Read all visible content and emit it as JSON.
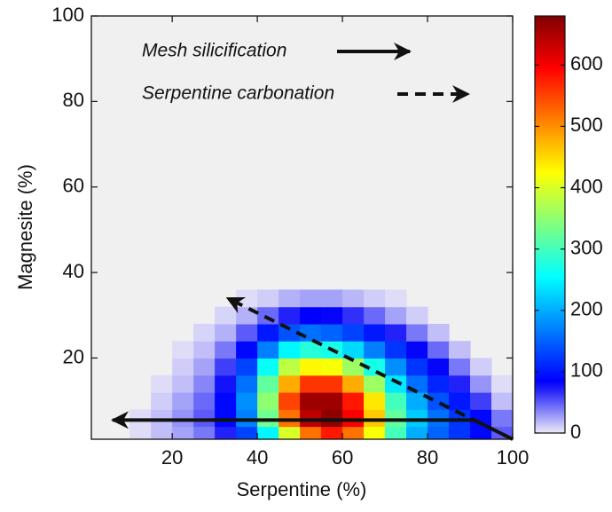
{
  "chart_data": {
    "type": "heatmap",
    "xlabel": "Serpentine (%)",
    "ylabel": "Magnesite (%)",
    "xlim": [
      1,
      100
    ],
    "ylim": [
      1,
      100
    ],
    "xticks": [
      20,
      40,
      60,
      80,
      100
    ],
    "yticks": [
      20,
      40,
      60,
      80,
      100
    ],
    "x": [
      2.5,
      7.5,
      12.5,
      17.5,
      22.5,
      27.5,
      32.5,
      37.5,
      42.5,
      47.5,
      52.5,
      57.5,
      62.5,
      67.5,
      72.5,
      77.5,
      82.5,
      87.5,
      92.5,
      97.5
    ],
    "y": [
      2,
      6,
      10,
      14,
      18,
      22,
      26,
      30,
      34
    ],
    "z": [
      [
        0,
        0,
        5,
        15,
        25,
        40,
        70,
        130,
        250,
        400,
        520,
        580,
        520,
        420,
        300,
        200,
        150,
        120,
        90,
        50
      ],
      [
        0,
        0,
        5,
        15,
        30,
        50,
        90,
        170,
        330,
        520,
        640,
        670,
        600,
        460,
        320,
        220,
        160,
        120,
        90,
        40
      ],
      [
        0,
        0,
        0,
        10,
        25,
        45,
        90,
        180,
        350,
        550,
        660,
        660,
        580,
        440,
        300,
        200,
        140,
        100,
        60,
        15
      ],
      [
        0,
        0,
        0,
        5,
        15,
        35,
        75,
        160,
        320,
        480,
        560,
        560,
        480,
        360,
        240,
        160,
        110,
        70,
        30,
        5
      ],
      [
        0,
        0,
        0,
        0,
        10,
        25,
        60,
        130,
        260,
        380,
        430,
        420,
        360,
        270,
        180,
        120,
        80,
        40,
        10,
        0
      ],
      [
        0,
        0,
        0,
        0,
        5,
        15,
        40,
        90,
        170,
        250,
        280,
        270,
        230,
        170,
        120,
        80,
        45,
        15,
        0,
        0
      ],
      [
        0,
        0,
        0,
        0,
        0,
        8,
        20,
        50,
        100,
        140,
        160,
        150,
        130,
        100,
        70,
        40,
        15,
        0,
        0,
        0
      ],
      [
        0,
        0,
        0,
        0,
        0,
        0,
        8,
        20,
        45,
        70,
        85,
        80,
        65,
        45,
        25,
        10,
        0,
        0,
        0,
        0
      ],
      [
        0,
        0,
        0,
        0,
        0,
        0,
        0,
        5,
        10,
        20,
        25,
        25,
        18,
        10,
        5,
        0,
        0,
        0,
        0,
        0
      ]
    ],
    "clim": [
      0,
      680
    ],
    "cticks": [
      0,
      100,
      200,
      300,
      400,
      500,
      600
    ],
    "annotations": [
      {
        "text": "Mesh silicification",
        "style": "solid",
        "points": [
          [
            100,
            1
          ],
          [
            91,
            5.5
          ],
          [
            6,
            5.5
          ]
        ]
      },
      {
        "text": "Serpentine carbonation",
        "style": "dashed",
        "points": [
          [
            100,
            1
          ],
          [
            33,
            34
          ]
        ]
      }
    ]
  }
}
